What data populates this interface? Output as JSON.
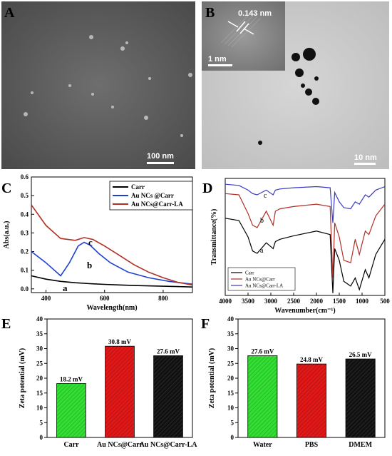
{
  "panels": {
    "A": {
      "label": "A",
      "scale_bar": "100 nm"
    },
    "B": {
      "label": "B",
      "scale_bar": "10 nm",
      "inset_scale": "1 nm",
      "lattice": "0.143 nm"
    }
  },
  "chart_data": [
    {
      "panel": "C",
      "type": "line",
      "xlabel": "Wavelength(nm)",
      "ylabel": "Abs(a.u.)",
      "xlim": [
        350,
        900
      ],
      "ylim": [
        -0.02,
        0.6
      ],
      "xticks": [
        400,
        600,
        800
      ],
      "yticks": [
        0.0,
        0.1,
        0.2,
        0.3,
        0.4,
        0.5,
        0.6
      ],
      "legend_position": "top-right",
      "series": [
        {
          "name": "Carr",
          "label": "a",
          "color": "#000000",
          "x": [
            350,
            400,
            450,
            500,
            550,
            600,
            650,
            700,
            750,
            800,
            850,
            900
          ],
          "y": [
            0.07,
            0.052,
            0.04,
            0.033,
            0.028,
            0.024,
            0.021,
            0.018,
            0.016,
            0.014,
            0.012,
            0.01
          ]
        },
        {
          "name": "Au NCs @Carr",
          "label": "b",
          "color": "#1f3fd0",
          "x": [
            350,
            400,
            450,
            480,
            510,
            530,
            550,
            580,
            620,
            680,
            750,
            820,
            900
          ],
          "y": [
            0.2,
            0.14,
            0.07,
            0.14,
            0.23,
            0.25,
            0.235,
            0.19,
            0.14,
            0.09,
            0.06,
            0.04,
            0.025
          ]
        },
        {
          "name": "Au NCs@Carr-LA",
          "label": "c",
          "color": "#b03025",
          "x": [
            350,
            400,
            450,
            500,
            530,
            560,
            600,
            650,
            700,
            750,
            800,
            850,
            900
          ],
          "y": [
            0.45,
            0.34,
            0.27,
            0.26,
            0.275,
            0.265,
            0.23,
            0.18,
            0.13,
            0.09,
            0.06,
            0.035,
            0.02
          ]
        }
      ]
    },
    {
      "panel": "D",
      "type": "line",
      "xlabel": "Wavenumber(cm⁻¹)",
      "ylabel": "Transmittance(%)",
      "xlim": [
        4000,
        500
      ],
      "xticks": [
        4000,
        3500,
        3000,
        2500,
        2000,
        1500,
        1000,
        500
      ],
      "legend_position": "bottom-left",
      "series": [
        {
          "name": "Carr",
          "label": "a",
          "color": "#000000",
          "x": [
            4000,
            3700,
            3500,
            3400,
            3300,
            3100,
            2950,
            2900,
            2800,
            2500,
            2000,
            1700,
            1640,
            1600,
            1500,
            1400,
            1250,
            1150,
            1060,
            930,
            850,
            700,
            500
          ],
          "y": [
            0.66,
            0.64,
            0.5,
            0.38,
            0.36,
            0.45,
            0.4,
            0.46,
            0.48,
            0.51,
            0.55,
            0.52,
            0.02,
            0.4,
            0.3,
            0.12,
            0.08,
            0.15,
            0.05,
            0.22,
            0.15,
            0.35,
            0.48
          ]
        },
        {
          "name": "Au NCs@Carr",
          "label": "b",
          "color": "#b03025",
          "x": [
            4000,
            3700,
            3500,
            3400,
            3300,
            3100,
            2950,
            2900,
            2800,
            2500,
            2000,
            1700,
            1640,
            1600,
            1500,
            1400,
            1250,
            1150,
            1060,
            930,
            850,
            700,
            500
          ],
          "y": [
            0.87,
            0.86,
            0.7,
            0.6,
            0.58,
            0.72,
            0.6,
            0.72,
            0.74,
            0.76,
            0.78,
            0.76,
            0.15,
            0.62,
            0.5,
            0.3,
            0.28,
            0.48,
            0.35,
            0.55,
            0.52,
            0.68,
            0.78
          ]
        },
        {
          "name": "Au NCs@Carr-LA",
          "label": "c",
          "color": "#3a3ac0",
          "x": [
            4000,
            3700,
            3500,
            3400,
            3300,
            3100,
            2950,
            2900,
            2800,
            2500,
            2000,
            1700,
            1640,
            1600,
            1500,
            1400,
            1250,
            1150,
            1060,
            930,
            850,
            700,
            500
          ],
          "y": [
            0.95,
            0.94,
            0.9,
            0.87,
            0.86,
            0.9,
            0.86,
            0.9,
            0.91,
            0.92,
            0.93,
            0.92,
            0.62,
            0.88,
            0.8,
            0.75,
            0.74,
            0.8,
            0.78,
            0.86,
            0.84,
            0.9,
            0.93
          ]
        }
      ]
    },
    {
      "panel": "E",
      "type": "bar",
      "ylabel": "Zeta potential (mV)",
      "ylim": [
        0,
        40
      ],
      "yticks": [
        0,
        5,
        10,
        15,
        20,
        25,
        30,
        35,
        40
      ],
      "categories": [
        "Carr",
        "Au NCs@Carr",
        "Au NCs@Carr-LA"
      ],
      "values": [
        18.2,
        30.8,
        27.6
      ],
      "value_labels": [
        "18.2 mV",
        "30.8 mV",
        "27.6 mV"
      ],
      "colors": [
        "#33dd33",
        "#e01818",
        "#111111"
      ]
    },
    {
      "panel": "F",
      "type": "bar",
      "ylabel": "Zeta potential (mV)",
      "ylim": [
        0,
        40
      ],
      "yticks": [
        0,
        5,
        10,
        15,
        20,
        25,
        30,
        35,
        40
      ],
      "categories": [
        "Water",
        "PBS",
        "DMEM"
      ],
      "values": [
        27.6,
        24.8,
        26.5
      ],
      "value_labels": [
        "27.6 mV",
        "24.8 mV",
        "26.5 mV"
      ],
      "colors": [
        "#33dd33",
        "#e01818",
        "#111111"
      ]
    }
  ]
}
